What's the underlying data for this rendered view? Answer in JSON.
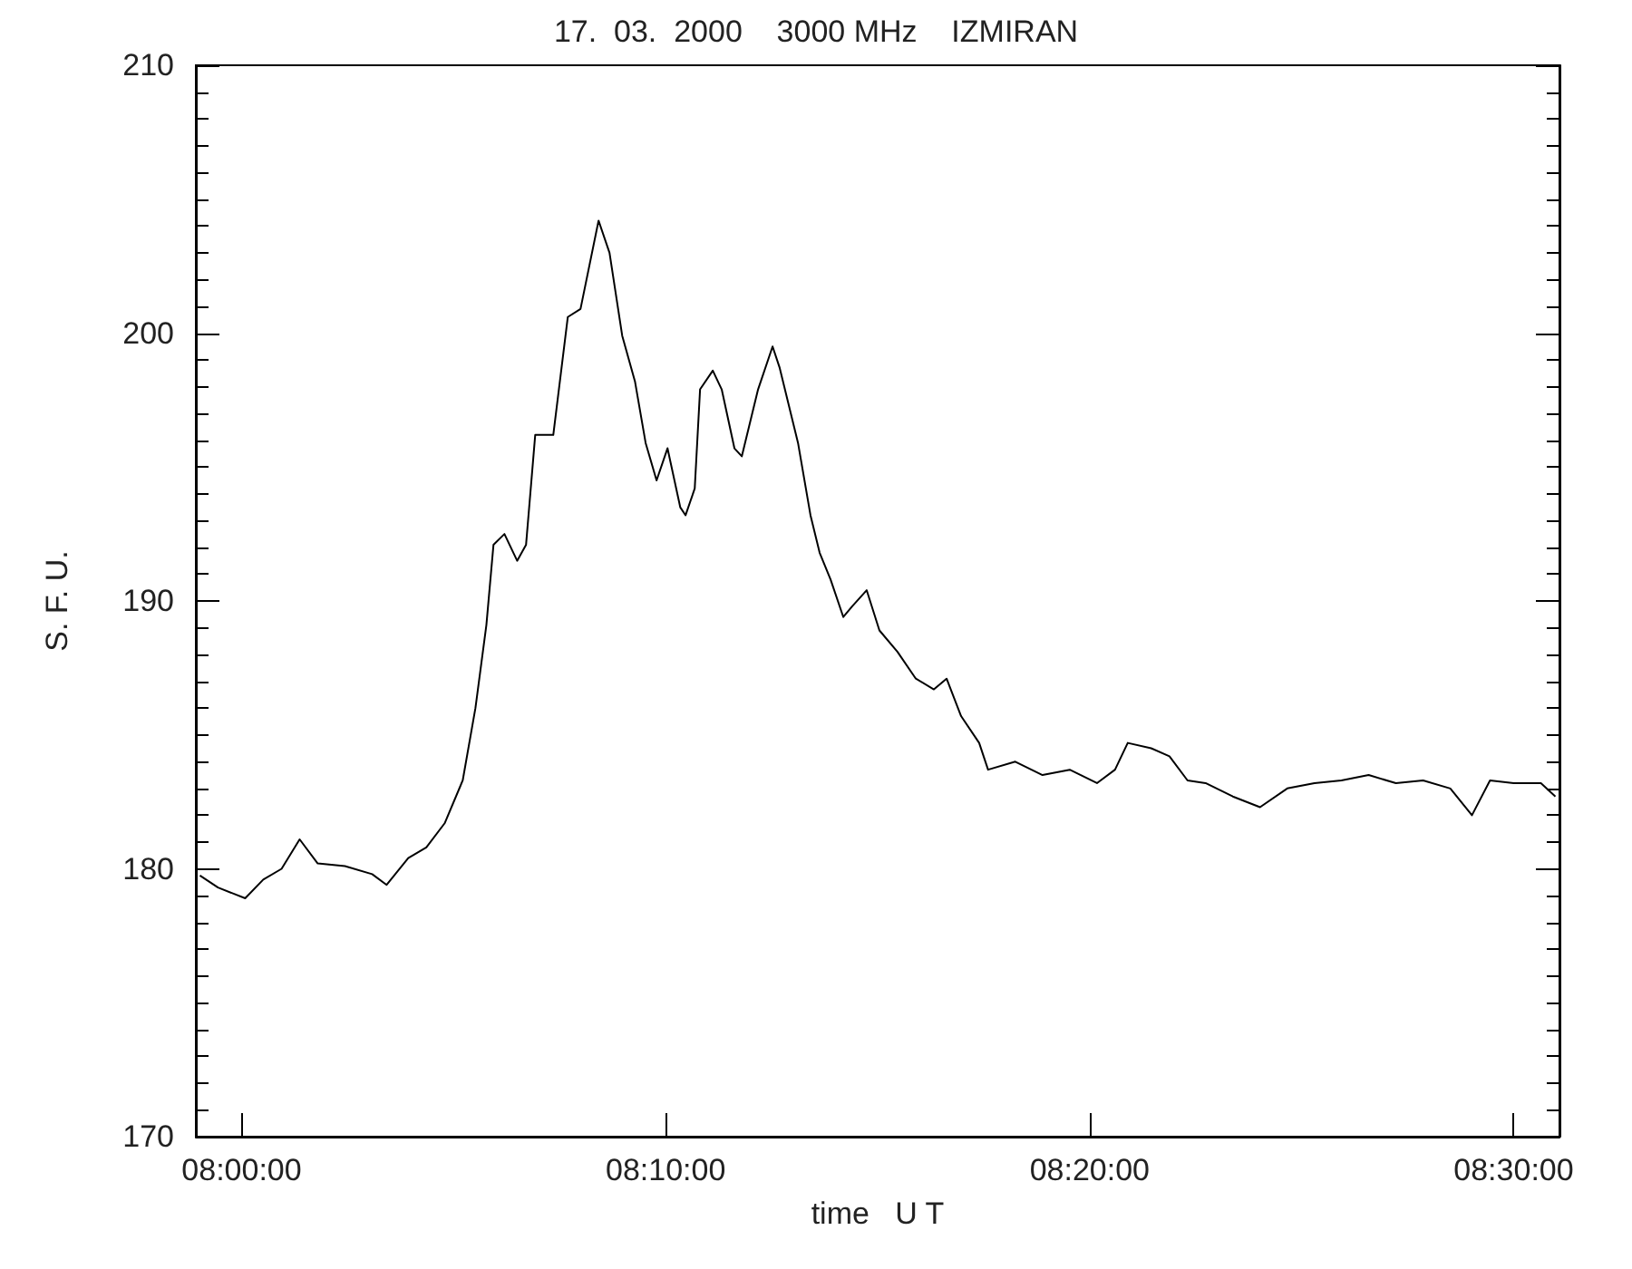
{
  "chart_data": {
    "type": "line",
    "title": "17.  03.  2000    3000 MHz    IZMIRAN",
    "xlabel": "time   U T",
    "ylabel": "S. F. U.",
    "x": [
      7.9836,
      7.9907,
      8.0014,
      8.0085,
      8.0157,
      8.0228,
      8.0299,
      8.0406,
      8.0513,
      8.057,
      8.0655,
      8.0726,
      8.0798,
      8.0869,
      8.0919,
      8.0962,
      8.099,
      8.1033,
      8.1083,
      8.1118,
      8.1154,
      8.1225,
      8.1282,
      8.1332,
      8.1403,
      8.1446,
      8.1496,
      8.1546,
      8.1588,
      8.1631,
      8.1674,
      8.1724,
      8.1745,
      8.1781,
      8.1802,
      8.1852,
      8.1887,
      8.1937,
      8.1966,
      8.203,
      8.2087,
      8.2115,
      8.2187,
      8.2236,
      8.2272,
      8.2315,
      8.2365,
      8.24,
      8.2457,
      8.2507,
      8.2578,
      8.265,
      8.2721,
      8.2771,
      8.2828,
      8.2899,
      8.2934,
      8.3041,
      8.3148,
      8.3255,
      8.3362,
      8.3433,
      8.3483,
      8.3575,
      8.3647,
      8.3718,
      8.3789,
      8.3896,
      8.4003,
      8.411,
      8.4217,
      8.4323,
      8.443,
      8.4537,
      8.4644,
      8.4751,
      8.4836,
      8.4907,
      8.5,
      8.5107,
      8.5164
    ],
    "series": [
      {
        "color": "#000000",
        "values": [
          179.75,
          179.3,
          178.9,
          179.6,
          180.0,
          181.1,
          180.2,
          180.1,
          179.8,
          179.4,
          180.4,
          180.8,
          181.7,
          183.3,
          186.0,
          189.1,
          192.1,
          192.5,
          191.5,
          192.1,
          196.2,
          196.2,
          200.6,
          200.9,
          204.2,
          203.0,
          199.9,
          198.2,
          195.9,
          194.5,
          195.7,
          193.5,
          193.2,
          194.2,
          197.9,
          198.6,
          197.9,
          195.7,
          195.4,
          197.9,
          199.5,
          198.7,
          195.9,
          193.2,
          191.8,
          190.8,
          189.4,
          189.8,
          190.4,
          188.9,
          188.1,
          187.1,
          186.7,
          187.1,
          185.7,
          184.7,
          183.7,
          184.0,
          183.5,
          183.7,
          183.2,
          183.7,
          184.7,
          184.5,
          184.2,
          183.3,
          183.2,
          182.7,
          182.3,
          183.0,
          183.2,
          183.3,
          183.5,
          183.2,
          183.3,
          183.0,
          182.0,
          183.3,
          183.2,
          183.2,
          182.7
        ]
      }
    ],
    "xlim": [
      7.982,
      8.518
    ],
    "xticks": [
      {
        "value": 8,
        "label": "08:00:00"
      },
      {
        "value": 8.1666667,
        "label": "08:10:00"
      },
      {
        "value": 8.3333333,
        "label": "08:20:00"
      },
      {
        "value": 8.5,
        "label": "08:30:00"
      }
    ],
    "ylim": [
      170,
      210
    ],
    "yticks": [
      170,
      180,
      190,
      200,
      210
    ],
    "grid": false,
    "marker": "none",
    "line_style": "solid"
  }
}
